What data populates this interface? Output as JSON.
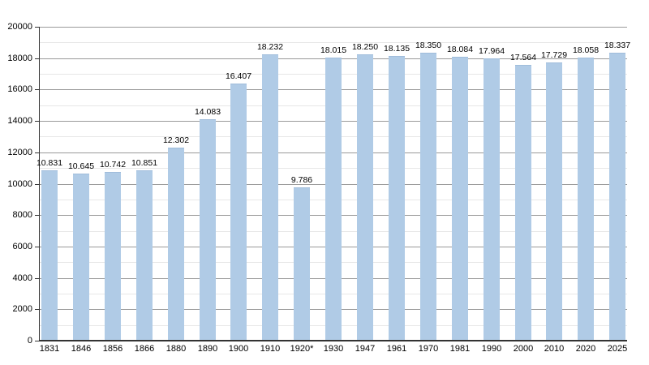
{
  "chart_data": {
    "type": "bar",
    "title": "",
    "categories": [
      "1831",
      "1846",
      "1856",
      "1866",
      "1880",
      "1890",
      "1900",
      "1910",
      "1920*",
      "1930",
      "1947",
      "1961",
      "1970",
      "1981",
      "1990",
      "2000",
      "2010",
      "2020",
      "2025"
    ],
    "values": [
      10831,
      10645,
      10742,
      10851,
      12302,
      14083,
      16407,
      18232,
      9786,
      18015,
      18250,
      18135,
      18350,
      18084,
      17964,
      17564,
      17729,
      18058,
      18337
    ],
    "value_labels": [
      "10.831",
      "10.645",
      "10.742",
      "10.851",
      "12.302",
      "14.083",
      "16.407",
      "18.232",
      "9.786",
      "18.015",
      "18.250",
      "18.135",
      "18.350",
      "18.084",
      "17.964",
      "17.564",
      "17.729",
      "18.058",
      "18.337"
    ],
    "xlabel": "",
    "ylabel": "",
    "ylim": [
      0,
      20000
    ],
    "y_major_step": 2000,
    "y_minor_step": 1000,
    "y_tick_labels": [
      "0",
      "2000",
      "4000",
      "6000",
      "8000",
      "10000",
      "12000",
      "14000",
      "16000",
      "18000",
      "20000"
    ],
    "grid": true,
    "legend_position": "none",
    "colors": {
      "bar_fill": "#b0cbe6",
      "bar_edge": "#a0bddb",
      "grid_major": "#9a9a9a",
      "grid_minor": "#e7e7e7",
      "axis": "#333333",
      "text": "#000000",
      "background": "#ffffff"
    }
  }
}
